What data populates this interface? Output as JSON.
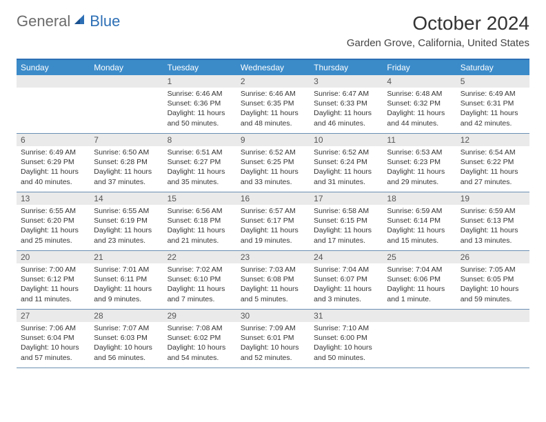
{
  "logo": {
    "text1": "General",
    "text2": "Blue"
  },
  "title": "October 2024",
  "location": "Garden Grove, California, United States",
  "colors": {
    "header_bar": "#3b8bc9",
    "top_border": "#2d6fb5",
    "row_border": "#6a8fb3",
    "daynum_bg": "#eaeaea",
    "text": "#333333",
    "logo_gray": "#6b6b6b",
    "logo_blue": "#2d6fb5"
  },
  "dow": [
    "Sunday",
    "Monday",
    "Tuesday",
    "Wednesday",
    "Thursday",
    "Friday",
    "Saturday"
  ],
  "weeks": [
    [
      {
        "n": "",
        "sr": "",
        "ss": "",
        "dl": ""
      },
      {
        "n": "",
        "sr": "",
        "ss": "",
        "dl": ""
      },
      {
        "n": "1",
        "sr": "Sunrise: 6:46 AM",
        "ss": "Sunset: 6:36 PM",
        "dl": "Daylight: 11 hours and 50 minutes."
      },
      {
        "n": "2",
        "sr": "Sunrise: 6:46 AM",
        "ss": "Sunset: 6:35 PM",
        "dl": "Daylight: 11 hours and 48 minutes."
      },
      {
        "n": "3",
        "sr": "Sunrise: 6:47 AM",
        "ss": "Sunset: 6:33 PM",
        "dl": "Daylight: 11 hours and 46 minutes."
      },
      {
        "n": "4",
        "sr": "Sunrise: 6:48 AM",
        "ss": "Sunset: 6:32 PM",
        "dl": "Daylight: 11 hours and 44 minutes."
      },
      {
        "n": "5",
        "sr": "Sunrise: 6:49 AM",
        "ss": "Sunset: 6:31 PM",
        "dl": "Daylight: 11 hours and 42 minutes."
      }
    ],
    [
      {
        "n": "6",
        "sr": "Sunrise: 6:49 AM",
        "ss": "Sunset: 6:29 PM",
        "dl": "Daylight: 11 hours and 40 minutes."
      },
      {
        "n": "7",
        "sr": "Sunrise: 6:50 AM",
        "ss": "Sunset: 6:28 PM",
        "dl": "Daylight: 11 hours and 37 minutes."
      },
      {
        "n": "8",
        "sr": "Sunrise: 6:51 AM",
        "ss": "Sunset: 6:27 PM",
        "dl": "Daylight: 11 hours and 35 minutes."
      },
      {
        "n": "9",
        "sr": "Sunrise: 6:52 AM",
        "ss": "Sunset: 6:25 PM",
        "dl": "Daylight: 11 hours and 33 minutes."
      },
      {
        "n": "10",
        "sr": "Sunrise: 6:52 AM",
        "ss": "Sunset: 6:24 PM",
        "dl": "Daylight: 11 hours and 31 minutes."
      },
      {
        "n": "11",
        "sr": "Sunrise: 6:53 AM",
        "ss": "Sunset: 6:23 PM",
        "dl": "Daylight: 11 hours and 29 minutes."
      },
      {
        "n": "12",
        "sr": "Sunrise: 6:54 AM",
        "ss": "Sunset: 6:22 PM",
        "dl": "Daylight: 11 hours and 27 minutes."
      }
    ],
    [
      {
        "n": "13",
        "sr": "Sunrise: 6:55 AM",
        "ss": "Sunset: 6:20 PM",
        "dl": "Daylight: 11 hours and 25 minutes."
      },
      {
        "n": "14",
        "sr": "Sunrise: 6:55 AM",
        "ss": "Sunset: 6:19 PM",
        "dl": "Daylight: 11 hours and 23 minutes."
      },
      {
        "n": "15",
        "sr": "Sunrise: 6:56 AM",
        "ss": "Sunset: 6:18 PM",
        "dl": "Daylight: 11 hours and 21 minutes."
      },
      {
        "n": "16",
        "sr": "Sunrise: 6:57 AM",
        "ss": "Sunset: 6:17 PM",
        "dl": "Daylight: 11 hours and 19 minutes."
      },
      {
        "n": "17",
        "sr": "Sunrise: 6:58 AM",
        "ss": "Sunset: 6:15 PM",
        "dl": "Daylight: 11 hours and 17 minutes."
      },
      {
        "n": "18",
        "sr": "Sunrise: 6:59 AM",
        "ss": "Sunset: 6:14 PM",
        "dl": "Daylight: 11 hours and 15 minutes."
      },
      {
        "n": "19",
        "sr": "Sunrise: 6:59 AM",
        "ss": "Sunset: 6:13 PM",
        "dl": "Daylight: 11 hours and 13 minutes."
      }
    ],
    [
      {
        "n": "20",
        "sr": "Sunrise: 7:00 AM",
        "ss": "Sunset: 6:12 PM",
        "dl": "Daylight: 11 hours and 11 minutes."
      },
      {
        "n": "21",
        "sr": "Sunrise: 7:01 AM",
        "ss": "Sunset: 6:11 PM",
        "dl": "Daylight: 11 hours and 9 minutes."
      },
      {
        "n": "22",
        "sr": "Sunrise: 7:02 AM",
        "ss": "Sunset: 6:10 PM",
        "dl": "Daylight: 11 hours and 7 minutes."
      },
      {
        "n": "23",
        "sr": "Sunrise: 7:03 AM",
        "ss": "Sunset: 6:08 PM",
        "dl": "Daylight: 11 hours and 5 minutes."
      },
      {
        "n": "24",
        "sr": "Sunrise: 7:04 AM",
        "ss": "Sunset: 6:07 PM",
        "dl": "Daylight: 11 hours and 3 minutes."
      },
      {
        "n": "25",
        "sr": "Sunrise: 7:04 AM",
        "ss": "Sunset: 6:06 PM",
        "dl": "Daylight: 11 hours and 1 minute."
      },
      {
        "n": "26",
        "sr": "Sunrise: 7:05 AM",
        "ss": "Sunset: 6:05 PM",
        "dl": "Daylight: 10 hours and 59 minutes."
      }
    ],
    [
      {
        "n": "27",
        "sr": "Sunrise: 7:06 AM",
        "ss": "Sunset: 6:04 PM",
        "dl": "Daylight: 10 hours and 57 minutes."
      },
      {
        "n": "28",
        "sr": "Sunrise: 7:07 AM",
        "ss": "Sunset: 6:03 PM",
        "dl": "Daylight: 10 hours and 56 minutes."
      },
      {
        "n": "29",
        "sr": "Sunrise: 7:08 AM",
        "ss": "Sunset: 6:02 PM",
        "dl": "Daylight: 10 hours and 54 minutes."
      },
      {
        "n": "30",
        "sr": "Sunrise: 7:09 AM",
        "ss": "Sunset: 6:01 PM",
        "dl": "Daylight: 10 hours and 52 minutes."
      },
      {
        "n": "31",
        "sr": "Sunrise: 7:10 AM",
        "ss": "Sunset: 6:00 PM",
        "dl": "Daylight: 10 hours and 50 minutes."
      },
      {
        "n": "",
        "sr": "",
        "ss": "",
        "dl": ""
      },
      {
        "n": "",
        "sr": "",
        "ss": "",
        "dl": ""
      }
    ]
  ]
}
